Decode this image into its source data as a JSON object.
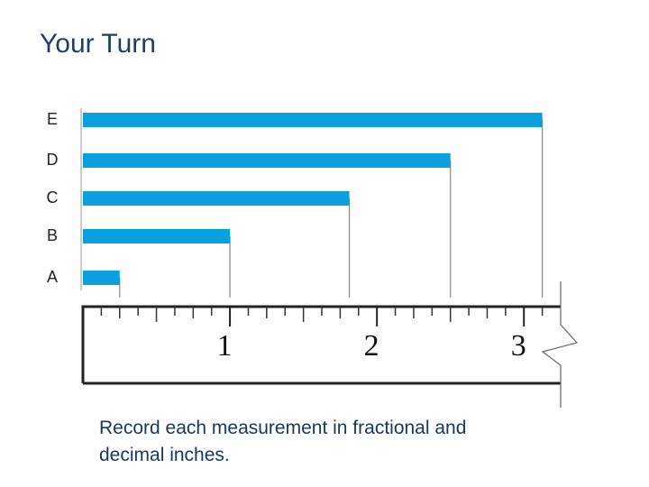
{
  "chart_data": {
    "type": "bar",
    "title": "Your Turn",
    "categories": [
      "A",
      "B",
      "C",
      "D",
      "E"
    ],
    "values": [
      0.25,
      1,
      1.8125,
      2.5,
      3.125
    ],
    "color": "#0aa0e0",
    "xlim": [
      0,
      3.25
    ],
    "xticks": [
      1,
      2,
      3
    ],
    "note": "Record each measurement in fractional and decimal inches."
  }
}
